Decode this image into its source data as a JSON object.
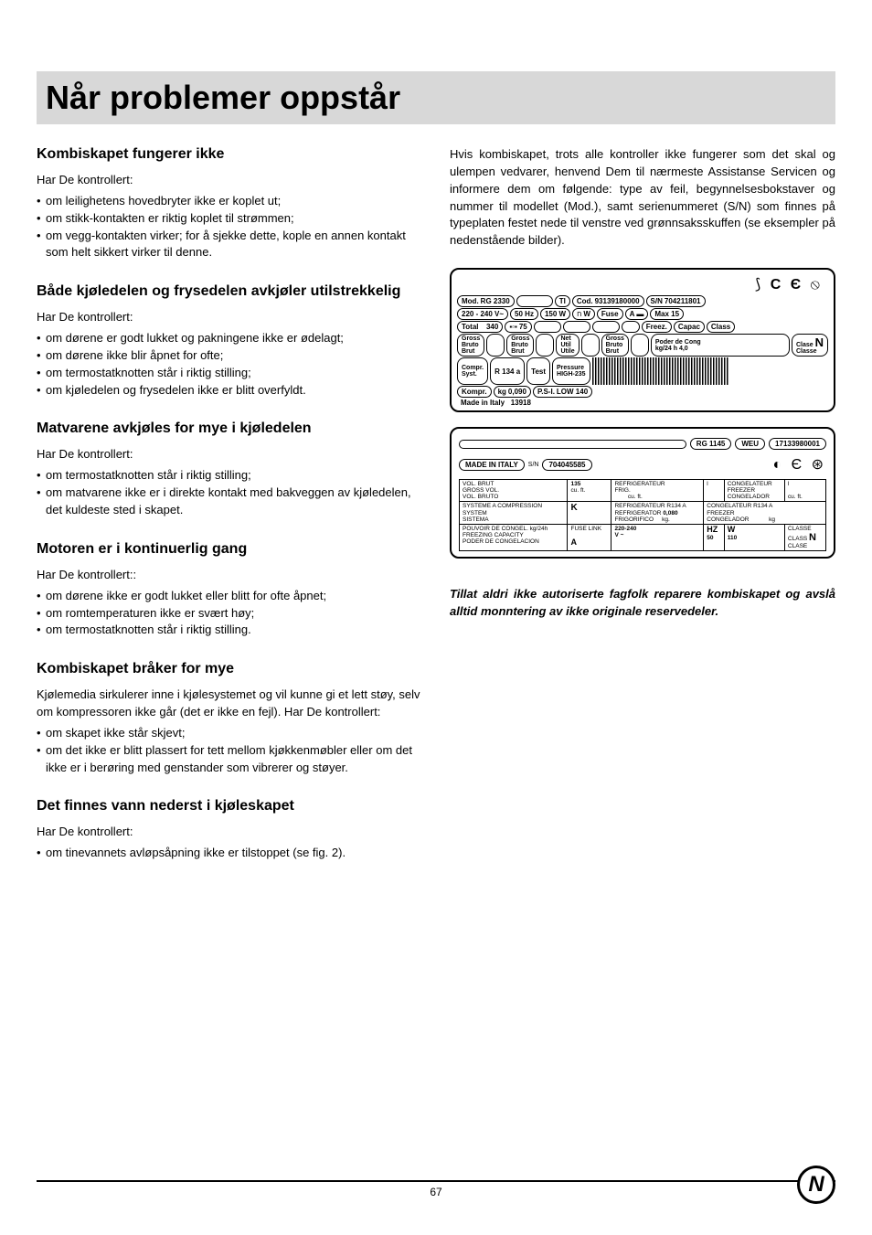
{
  "title": "Når problemer oppstår",
  "left_sections": [
    {
      "heading": "Kombiskapet fungerer ikke",
      "intro": "Har De kontrollert:",
      "items": [
        "om leilighetens hovedbryter ikke er koplet ut;",
        "om stikk-kontakten er riktig koplet til strømmen;",
        "om vegg-kontakten virker; for å sjekke dette, kople en annen kontakt som helt sikkert virker til denne."
      ]
    },
    {
      "heading": "Både kjøledelen og frysedelen avkjøler utilstrekkelig",
      "intro": "Har De kontrollert:",
      "items": [
        "om dørene er godt lukket og pakningene ikke er ødelagt;",
        "om dørene ikke blir åpnet for ofte;",
        "om termostatknotten står i riktig stilling;",
        "om kjøledelen og frysedelen ikke er blitt overfyldt."
      ]
    },
    {
      "heading": "Matvarene avkjøles for mye i kjøledelen",
      "intro": "Har De kontrollert:",
      "items": [
        "om termostatknotten står i riktig stilling;",
        "om matvarene ikke er i direkte kontakt med bakveggen av kjøledelen, det kuldeste sted i skapet."
      ]
    },
    {
      "heading": "Motoren er i kontinuerlig gang",
      "intro": "Har De kontrollert::",
      "items": [
        "om dørene ikke er godt lukket eller blitt for ofte åpnet;",
        "om romtemperaturen ikke er svært høy;",
        "om termostatknotten står i riktig stilling."
      ]
    },
    {
      "heading": "Kombiskapet bråker for mye",
      "body": "Kjølemedia sirkulerer inne i kjølesystemet og vil kunne gi et lett støy, selv om kompressoren ikke går (det er ikke en fejl). Har De kontrollert:",
      "items": [
        "om skapet ikke står skjevt;",
        "om det ikke er blitt plassert for tett mellom kjøkkenmøbler eller om det ikke er i berøring med genstander som vibrerer og støyer."
      ]
    },
    {
      "heading": "Det finnes vann nederst i kjøleskapet",
      "intro": "Har De kontrollert:",
      "items": [
        "om tinevannets avløpsåpning ikke er tilstoppet (se fig. 2)."
      ]
    }
  ],
  "right_intro": "Hvis kombiskapet, trots alle kontroller ikke fungerer som det skal og ulempen vedvarer, henvend Dem til nærmeste Assistanse Servicen og informere dem om følgende: type av feil, begynnelsesbokstaver og nummer til modellet (Mod.), samt serienummeret (S/N) som finnes på typeplaten festet nede til venstre ved grønnsaksskuffen (se eksempler på nedenstående bilder).",
  "plate1": {
    "mod": "RG 2330",
    "ti": "TI",
    "cod": "93139180000",
    "sn": "704211801",
    "voltage": "220 - 240 V~",
    "hz": "50 Hz",
    "watts": "150 W",
    "w_extra": "W",
    "fuse": "Fuse",
    "fuse_a": "A",
    "max": "Max 15",
    "total": "Total",
    "total_val": "340",
    "total_l": "75",
    "freez": "Freez.",
    "capac": "Capac",
    "class": "Class",
    "gross_bruto_brut": "Gross\nBruto\nBrut",
    "net_util_utile": "Net\nUtil\nUtile",
    "poder": "Poder de Cong",
    "clase_n": "Clase",
    "classe": "Classe",
    "kg24h": "kg/24 h",
    "kg24h_val": "4,0",
    "compr_syst": "Compr.\nSyst.",
    "r134a": "R 134 a",
    "test": "Test",
    "pressure": "Pressure\nHIGH-235",
    "psi": "P.S-I.",
    "low": "LOW 140",
    "kompr": "Kompr.",
    "kg": "kg",
    "kg_val": "0,090",
    "made": "Made in Italy",
    "made_num": "13918"
  },
  "plate2": {
    "model": "RG 1145",
    "weu": "WEU",
    "serial_top": "17133980001",
    "made": "MADE IN ITALY",
    "sn": "S/N",
    "sn_val": "704045585",
    "vol_brut": "VOL. BRUT\nGROSS VOL.\nVOL. BRUTO",
    "vol_val": "135",
    "l": "l\ncu. ft.",
    "refrig": "REFRIGERATEUR\nFRIG.",
    "cong": "CONGELATEUR\nFREEZER\nCONGELADOR",
    "l2": "l\ncu. ft.",
    "l3": "l\ncu. ft.",
    "systeme": "SYSTEME A COMPRESSION\nSYSTEM\nSISTEMA",
    "k": "K",
    "ref2": "REFRIGERATEUR R134 A\nREFRIGERATOR\nFRIGORIFICO",
    "ref2_val": "0,080",
    "kg2": "kg.",
    "cong2": "CONGELATEUR R134 A\nFREEZER\nCONGELADOR",
    "kg3": "kg",
    "pouvoir": "POUVOIR DE CONGEL. kg/24h\nFREEZING CAPACITY\nPODER DE CONGELACION",
    "fuselink": "FUSE LINK",
    "v": "V ~",
    "fl_val": "220-240",
    "a": "A",
    "hz": "HZ",
    "hz_val": "50",
    "w": "W",
    "w_val": "110",
    "classe": "CLASSE\nCLASS\nCLASE",
    "n": "N"
  },
  "warning": "Tillat aldri ikke autoriserte fagfolk reparere kombiskapet og avslå alltid monntering av ikke originale reservedeler.",
  "page": "67",
  "lang": "N"
}
